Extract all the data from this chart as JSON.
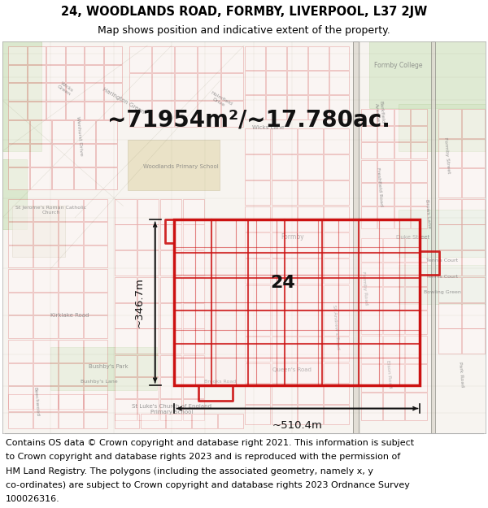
{
  "title_line1": "24, WOODLANDS ROAD, FORMBY, LIVERPOOL, L37 2JW",
  "title_line2": "Map shows position and indicative extent of the property.",
  "area_text": "~71954m²/~17.780ac.",
  "label_number": "24",
  "dim_vertical": "~346.7m",
  "dim_horizontal": "~510.4m",
  "footer_lines": [
    "Contains OS data © Crown copyright and database right 2021. This information is subject",
    "to Crown copyright and database rights 2023 and is reproduced with the permission of",
    "HM Land Registry. The polygons (including the associated geometry, namely x, y",
    "co-ordinates) are subject to Crown copyright and database rights 2023 Ordnance Survey",
    "100026316."
  ],
  "map_bg": "#f7f4f0",
  "red_color": "#cc1111",
  "pink_fill": "#fce8e8",
  "arrow_color": "#111111",
  "title_fontsize": 10.5,
  "subtitle_fontsize": 9,
  "area_fontsize": 20,
  "label_fontsize": 16,
  "dim_fontsize": 9.5,
  "footer_fontsize": 8,
  "street_color": "#cc3333",
  "street_alpha": 0.45,
  "label_color": "#777777",
  "green_color": "#c8ddb8",
  "tan_color": "#e8dfc8"
}
